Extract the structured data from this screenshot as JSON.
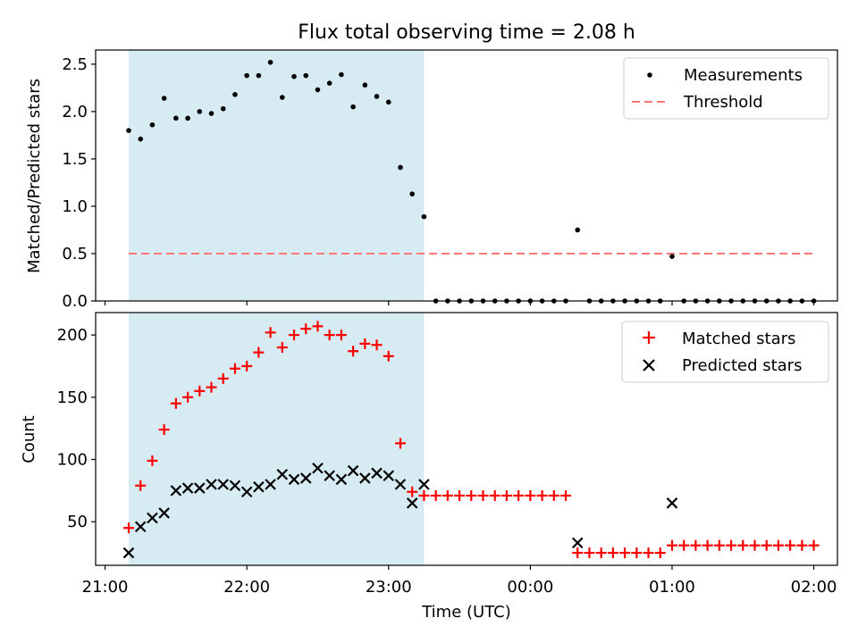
{
  "chart_data": {
    "title": "Flux total observing time = 2.08 h",
    "type": "scatter",
    "x_time_format": "HH:MM",
    "x_ticks": [
      "21:00",
      "22:00",
      "23:00",
      "00:00",
      "01:00",
      "02:00"
    ],
    "x_range": [
      "2023-01-01T20:56",
      "2023-01-02T02:10"
    ],
    "shaded_span": {
      "from": "21:10",
      "to": "23:15",
      "color": "#add8e6"
    },
    "xlabel": "Time (UTC)",
    "times": [
      "21:10",
      "21:15",
      "21:20",
      "21:25",
      "21:30",
      "21:35",
      "21:40",
      "21:45",
      "21:50",
      "21:55",
      "22:00",
      "22:05",
      "22:10",
      "22:15",
      "22:20",
      "22:25",
      "22:30",
      "22:35",
      "22:40",
      "22:45",
      "22:50",
      "22:55",
      "23:00",
      "23:05",
      "23:10",
      "23:15",
      "23:20",
      "23:25",
      "23:30",
      "23:35",
      "23:40",
      "23:45",
      "23:50",
      "23:55",
      "00:00",
      "00:05",
      "00:10",
      "00:15",
      "00:20",
      "00:25",
      "00:30",
      "00:35",
      "00:40",
      "00:45",
      "00:50",
      "00:55",
      "01:00",
      "01:05",
      "01:10",
      "01:15",
      "01:20",
      "01:25",
      "01:30",
      "01:35",
      "01:40",
      "01:45",
      "01:50",
      "01:55",
      "02:00"
    ],
    "panels": [
      {
        "ylabel": "Matched/Predicted stars",
        "ylim": [
          0,
          2.65
        ],
        "yticks": [
          "0.0",
          "0.5",
          "1.0",
          "1.5",
          "2.0",
          "2.5"
        ],
        "legend_position": "top-right",
        "series": [
          {
            "name": "Measurements",
            "marker": "dot",
            "color": "#000000",
            "values": [
              1.8,
              1.71,
              1.86,
              2.14,
              1.93,
              1.93,
              2.0,
              1.98,
              2.03,
              2.18,
              2.38,
              2.38,
              2.52,
              2.15,
              2.37,
              2.38,
              2.23,
              2.3,
              2.39,
              2.05,
              2.28,
              2.16,
              2.1,
              1.41,
              1.13,
              0.89,
              0,
              0,
              0,
              0,
              0,
              0,
              0,
              0,
              0,
              0,
              0,
              0,
              0.75,
              0,
              0,
              0,
              0,
              0,
              0,
              0,
              0.47,
              0,
              0,
              0,
              0,
              0,
              0,
              0,
              0,
              0,
              0,
              0,
              0
            ]
          },
          {
            "name": "Threshold",
            "style": "dashed-line",
            "color": "#ff7777",
            "value": 0.5
          }
        ]
      },
      {
        "ylabel": "Count",
        "ylim": [
          15,
          218
        ],
        "yticks": [
          "50",
          "100",
          "150",
          "200"
        ],
        "legend_position": "top-right",
        "series": [
          {
            "name": "Matched stars",
            "marker": "plus",
            "color": "#ff0000",
            "values": [
              45,
              79,
              99,
              124,
              145,
              150,
              155,
              158,
              165,
              173,
              175,
              186,
              202,
              190,
              200,
              205,
              207,
              200,
              200,
              187,
              193,
              192,
              183,
              113,
              74,
              71,
              71,
              71,
              71,
              71,
              71,
              71,
              71,
              71,
              71,
              71,
              71,
              71,
              25,
              25,
              25,
              25,
              25,
              25,
              25,
              25,
              31,
              31,
              31,
              31,
              31,
              31,
              31,
              31,
              31,
              31,
              31,
              31,
              31
            ]
          },
          {
            "name": "Predicted stars",
            "marker": "x",
            "color": "#000000",
            "values": [
              25,
              46,
              53,
              57,
              75,
              77,
              77,
              80,
              80,
              79,
              74,
              78,
              80,
              88,
              84,
              85,
              93,
              87,
              84,
              91,
              85,
              89,
              87,
              80,
              65,
              80,
              null,
              null,
              null,
              null,
              null,
              null,
              null,
              null,
              null,
              null,
              null,
              null,
              33,
              null,
              null,
              null,
              null,
              null,
              null,
              null,
              65,
              null,
              null,
              null,
              null,
              null,
              null,
              null,
              null,
              null,
              null,
              null,
              null
            ]
          }
        ]
      }
    ]
  }
}
